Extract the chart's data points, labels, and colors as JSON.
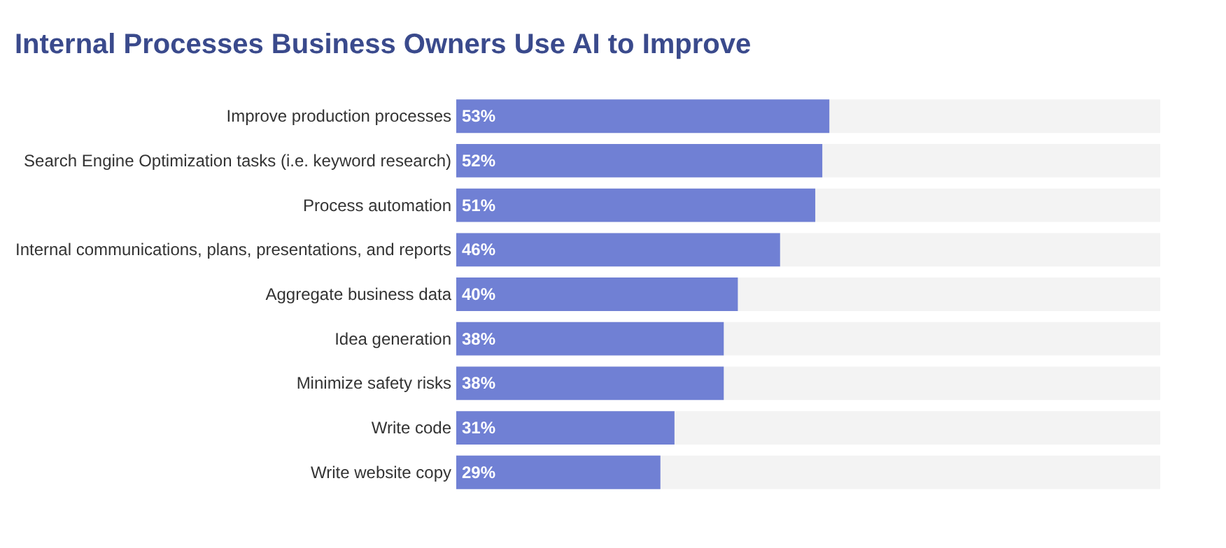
{
  "chart_data": {
    "type": "bar",
    "orientation": "horizontal",
    "title": "Internal Processes Business Owners Use AI to Improve",
    "categories": [
      "Improve production processes",
      "Search Engine Optimization tasks (i.e. keyword research)",
      "Process automation",
      "Internal communications, plans, presentations, and reports",
      "Aggregate business data",
      "Idea generation",
      "Minimize safety risks",
      "Write code",
      "Write website copy"
    ],
    "values": [
      53,
      52,
      51,
      46,
      40,
      38,
      38,
      31,
      29
    ],
    "value_labels": [
      "53%",
      "52%",
      "51%",
      "46%",
      "40%",
      "38%",
      "38%",
      "31%",
      "29%"
    ],
    "color": "#7080d4",
    "xlim": [
      0,
      100
    ],
    "tick_labels": "y",
    "grid": false
  }
}
